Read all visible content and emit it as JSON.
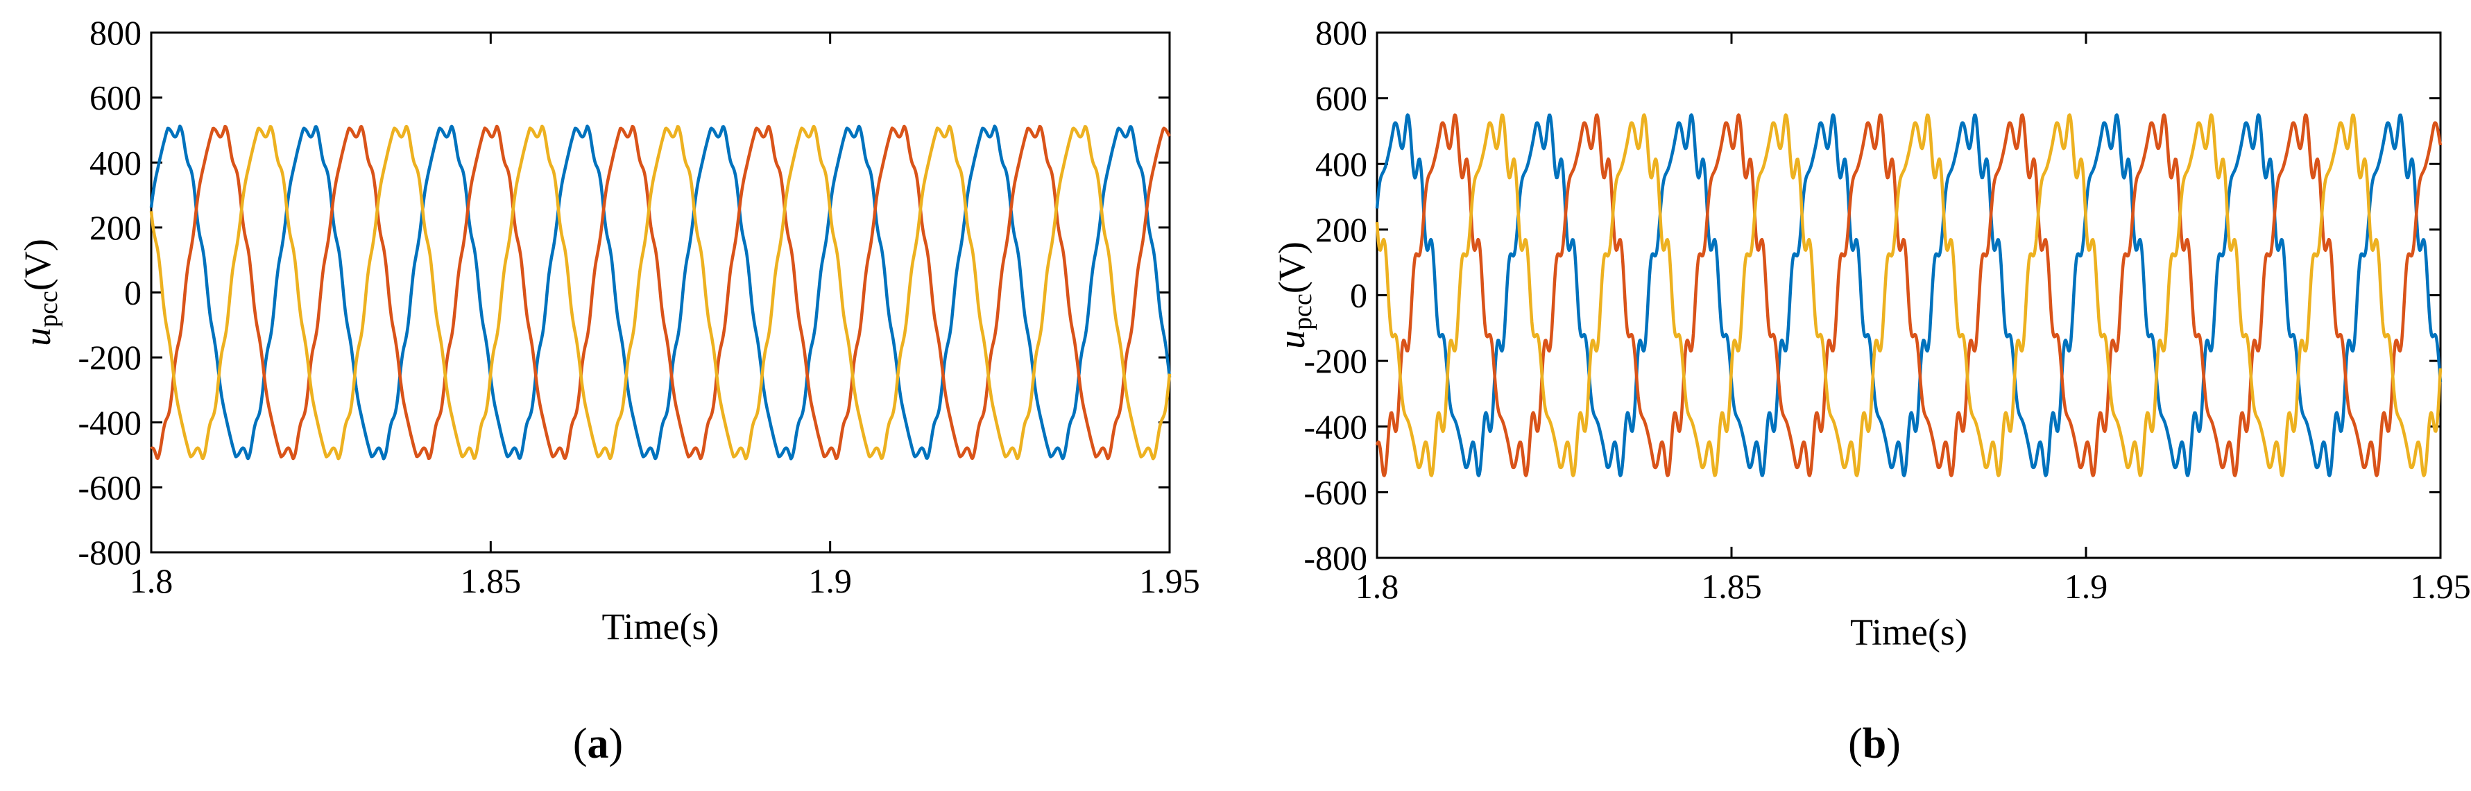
{
  "chart_data": [
    {
      "type": "line",
      "caption": "a",
      "xlabel": "Time(s)",
      "ylabel": {
        "main": "u",
        "sub": "pcc",
        "unit": "(V)"
      },
      "xlim": [
        1.8,
        1.95
      ],
      "ylim": [
        -800,
        800
      ],
      "xticks": [
        1.8,
        1.85,
        1.9,
        1.95
      ],
      "xtick_labels": [
        "1.8",
        "1.85",
        "1.9",
        "1.95"
      ],
      "yticks": [
        -800,
        -600,
        -400,
        -200,
        0,
        200,
        400,
        600,
        800
      ],
      "ytick_labels": [
        "-800",
        "-600",
        "-400",
        "-200",
        "0",
        "200",
        "400",
        "600",
        "800"
      ],
      "grid": false,
      "series": [
        {
          "color": "#0072BD",
          "frequency_hz": 50,
          "amplitude_v": 520,
          "peak_v": 500,
          "phase_deg": 30,
          "ripple_v": 12
        },
        {
          "color": "#D95319",
          "frequency_hz": 50,
          "amplitude_v": 520,
          "peak_v": 500,
          "phase_deg": -90,
          "ripple_v": 12
        },
        {
          "color": "#EDB120",
          "frequency_hz": 50,
          "amplitude_v": 520,
          "peak_v": 500,
          "phase_deg": 150,
          "ripple_v": 12
        }
      ]
    },
    {
      "type": "line",
      "caption": "b",
      "xlabel": "Time(s)",
      "ylabel": {
        "main": "u",
        "sub": "pcc",
        "unit": "(V)"
      },
      "xlim": [
        1.8,
        1.95
      ],
      "ylim": [
        -800,
        800
      ],
      "xticks": [
        1.8,
        1.85,
        1.9,
        1.95
      ],
      "xtick_labels": [
        "1.8",
        "1.85",
        "1.9",
        "1.95"
      ],
      "yticks": [
        -800,
        -600,
        -400,
        -200,
        0,
        200,
        400,
        600,
        800
      ],
      "ytick_labels": [
        "-800",
        "-600",
        "-400",
        "-200",
        "0",
        "200",
        "400",
        "600",
        "800"
      ],
      "grid": false,
      "series": [
        {
          "color": "#0072BD",
          "frequency_hz": 50,
          "amplitude_v": 520,
          "peak_v": 500,
          "phase_deg": 30,
          "ripple_v": 45
        },
        {
          "color": "#D95319",
          "frequency_hz": 50,
          "amplitude_v": 520,
          "peak_v": 500,
          "phase_deg": -90,
          "ripple_v": 45
        },
        {
          "color": "#EDB120",
          "frequency_hz": 50,
          "amplitude_v": 520,
          "peak_v": 500,
          "phase_deg": 150,
          "ripple_v": 45
        }
      ]
    }
  ]
}
